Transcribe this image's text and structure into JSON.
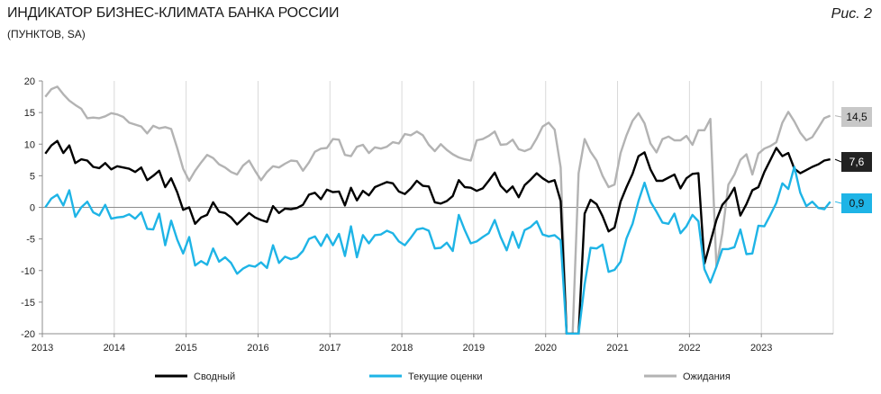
{
  "header": {
    "title": "ИНДИКАТОР БИЗНЕС-КЛИМАТА БАНКА РОССИИ",
    "subtitle": "(ПУНКТОВ, SA)",
    "figure_label": "Рис. 2"
  },
  "chart_data": {
    "type": "line",
    "title": "ИНДИКАТОР БИЗНЕС-КЛИМАТА БАНКА РОССИИ",
    "subtitle": "(ПУНКТОВ, SA)",
    "ylim": [
      -20,
      20
    ],
    "yticks": [
      20,
      15,
      10,
      5,
      0,
      -5,
      -10,
      -15,
      -20
    ],
    "x_start": "2013-01",
    "x_end": "2023-12",
    "x_ticks": [
      "2013",
      "2014",
      "2015",
      "2016",
      "2017",
      "2018",
      "2019",
      "2020",
      "2021",
      "2022",
      "2023"
    ],
    "grid": "vertical",
    "legend_position": "bottom",
    "series": [
      {
        "name": "Ожидания",
        "color": "#b3b3b3",
        "end_label": "14,5",
        "values": [
          17.5,
          18.7,
          19.1,
          17.9,
          16.9,
          16.2,
          15.6,
          14.1,
          14.2,
          14.1,
          14.4,
          14.9,
          14.7,
          14.3,
          13.4,
          13.1,
          12.8,
          11.7,
          12.9,
          12.5,
          12.7,
          12.4,
          9.4,
          6.1,
          4.2,
          5.8,
          7.1,
          8.3,
          7.8,
          6.8,
          6.3,
          5.6,
          5.2,
          6.6,
          7.4,
          5.8,
          4.3,
          5.6,
          6.5,
          6.3,
          6.9,
          7.4,
          7.3,
          5.8,
          7.1,
          8.8,
          9.3,
          9.4,
          10.8,
          10.7,
          8.3,
          8.1,
          9.6,
          9.9,
          8.6,
          9.5,
          9.3,
          9.6,
          10.3,
          10.1,
          11.6,
          11.4,
          12.0,
          11.4,
          9.9,
          8.9,
          10.0,
          9.1,
          8.4,
          7.9,
          7.6,
          7.4,
          10.6,
          10.8,
          11.3,
          12.0,
          9.9,
          10.0,
          10.7,
          9.2,
          8.9,
          9.3,
          10.9,
          12.8,
          13.4,
          12.3,
          6.3,
          -20.0,
          -20.0,
          5.4,
          10.8,
          8.8,
          7.4,
          5.0,
          3.2,
          3.6,
          8.6,
          11.4,
          13.7,
          14.9,
          13.3,
          10.1,
          8.7,
          10.8,
          11.2,
          10.6,
          10.6,
          11.3,
          9.9,
          12.2,
          12.2,
          14.0,
          -9.4,
          -4.1,
          3.6,
          5.2,
          7.5,
          8.4,
          5.2,
          8.5,
          9.3,
          9.7,
          10.3,
          13.4,
          15.1,
          13.6,
          11.8,
          10.6,
          11.1,
          12.6,
          14.1,
          14.5
        ]
      },
      {
        "name": "Сводный",
        "color": "#000000",
        "end_label": "7,6",
        "values": [
          8.5,
          9.8,
          10.5,
          8.6,
          9.8,
          7.0,
          7.6,
          7.4,
          6.4,
          6.2,
          7.0,
          6.0,
          6.5,
          6.3,
          6.1,
          5.6,
          6.3,
          4.3,
          5.0,
          5.8,
          3.2,
          4.6,
          2.4,
          -0.4,
          0.0,
          -2.6,
          -1.6,
          -1.2,
          0.8,
          -0.7,
          -0.9,
          -1.6,
          -2.7,
          -1.8,
          -0.9,
          -1.6,
          -2.0,
          -2.3,
          0.2,
          -0.9,
          -0.2,
          -0.3,
          -0.1,
          0.4,
          2.0,
          2.3,
          1.3,
          2.8,
          2.4,
          2.5,
          0.3,
          3.1,
          1.1,
          2.6,
          1.9,
          3.2,
          3.6,
          4.0,
          3.8,
          2.5,
          2.1,
          3.0,
          4.2,
          3.4,
          3.3,
          0.8,
          0.6,
          1.0,
          1.8,
          4.3,
          3.2,
          3.1,
          2.6,
          3.0,
          4.2,
          5.5,
          3.4,
          2.4,
          3.3,
          1.6,
          3.5,
          4.4,
          5.4,
          4.6,
          4.0,
          4.3,
          1.0,
          -20.0,
          -20.0,
          -20.0,
          -1.0,
          1.2,
          0.5,
          -1.4,
          -3.8,
          -3.2,
          0.9,
          3.2,
          5.3,
          8.1,
          8.7,
          6.0,
          4.2,
          4.2,
          4.7,
          5.2,
          3.0,
          4.6,
          5.3,
          5.4,
          -8.9,
          -5.5,
          -2.0,
          0.4,
          1.5,
          3.1,
          -1.3,
          0.5,
          2.7,
          3.2,
          5.6,
          7.5,
          9.4,
          8.1,
          8.6,
          6.1,
          5.4,
          5.9,
          6.4,
          6.8,
          7.4,
          7.6
        ]
      },
      {
        "name": "Текущие оценки",
        "color": "#1eb4e6",
        "end_label": "0,9",
        "values": [
          0.0,
          1.4,
          2.0,
          0.3,
          2.7,
          -1.5,
          0.0,
          0.9,
          -0.8,
          -1.3,
          0.4,
          -1.8,
          -1.6,
          -1.5,
          -1.1,
          -1.8,
          -0.8,
          -3.4,
          -3.5,
          -1.0,
          -6.0,
          -2.1,
          -5.1,
          -7.3,
          -4.7,
          -9.2,
          -8.5,
          -9.1,
          -6.5,
          -8.6,
          -7.9,
          -8.8,
          -10.5,
          -9.7,
          -9.2,
          -9.4,
          -8.7,
          -9.6,
          -6.0,
          -8.8,
          -7.8,
          -8.2,
          -7.9,
          -6.9,
          -5.0,
          -4.6,
          -6.1,
          -4.3,
          -6.0,
          -4.2,
          -7.7,
          -3.0,
          -7.9,
          -4.4,
          -5.7,
          -4.4,
          -4.3,
          -3.7,
          -4.1,
          -5.4,
          -6.0,
          -4.8,
          -3.5,
          -3.3,
          -3.7,
          -6.5,
          -6.4,
          -5.6,
          -6.9,
          -1.2,
          -3.6,
          -5.7,
          -5.4,
          -4.7,
          -4.1,
          -2.0,
          -4.7,
          -6.8,
          -3.9,
          -6.4,
          -3.6,
          -3.1,
          -2.2,
          -4.3,
          -4.6,
          -4.4,
          -5.2,
          -20.0,
          -20.0,
          -20.0,
          -12.2,
          -6.4,
          -6.5,
          -5.9,
          -10.2,
          -9.9,
          -8.6,
          -4.9,
          -2.6,
          1.0,
          3.9,
          0.9,
          -0.7,
          -2.4,
          -2.6,
          -1.0,
          -4.1,
          -3.0,
          -1.2,
          -2.2,
          -9.8,
          -11.9,
          -9.4,
          -6.6,
          -6.6,
          -6.3,
          -3.5,
          -7.4,
          -7.3,
          -2.9,
          -3.0,
          -1.2,
          0.7,
          3.8,
          2.9,
          6.4,
          2.3,
          0.2,
          0.9,
          -0.1,
          -0.3,
          0.9
        ]
      }
    ]
  }
}
